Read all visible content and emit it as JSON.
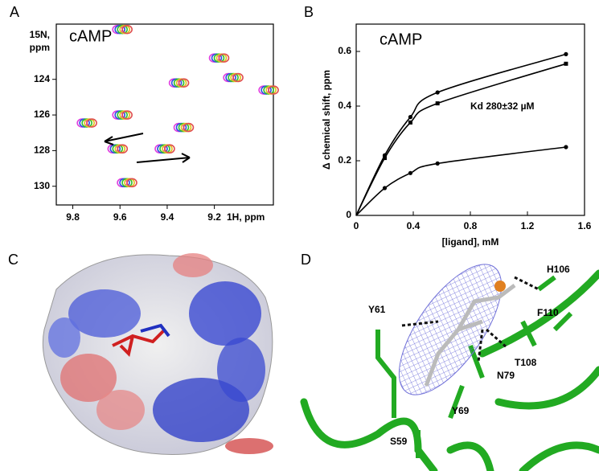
{
  "panel_labels": [
    "A",
    "B",
    "C",
    "D"
  ],
  "chart_data": [
    {
      "type": "nmr",
      "annotation": "cAMP",
      "xlabel": "1H, ppm",
      "ylabel": [
        "15N,",
        "ppm"
      ],
      "x": [
        9.59,
        9.18,
        9.35,
        9.12,
        9.74,
        9.59,
        9.33,
        9.61,
        9.41,
        9.57,
        8.97
      ],
      "y": [
        121.2,
        122.8,
        124.2,
        123.9,
        126.45,
        126.0,
        126.7,
        127.9,
        127.9,
        129.8,
        124.6
      ],
      "colors": [
        "#e040e0",
        "#3050e0",
        "#30c030",
        "#e0c020",
        "#e05050"
      ],
      "xlim": [
        9.87,
        8.95
      ],
      "xticks": [
        9.8,
        9.6,
        9.4,
        9.2
      ],
      "ylim": [
        131.05,
        120.9
      ],
      "yticks": [
        124,
        126,
        128,
        130
      ]
    },
    {
      "type": "line",
      "annotation": "cAMP",
      "kd_label": "Kd 280±32 µM",
      "xlabel": "[ligand], mM",
      "ylabel": "Δ chemical shift, ppm",
      "x": [
        0.2,
        0.38,
        0.57,
        1.47
      ],
      "series": [
        {
          "marker": "circle",
          "color": "#000000",
          "values": [
            0.22,
            0.36,
            0.45,
            0.59
          ]
        },
        {
          "marker": "square",
          "color": "#000000",
          "values": [
            0.21,
            0.34,
            0.41,
            0.555
          ]
        },
        {
          "marker": "circle",
          "color": "#000000",
          "values": [
            0.1,
            0.155,
            0.19,
            0.25
          ]
        }
      ],
      "xlim": [
        0,
        1.6
      ],
      "xticks": [
        0,
        0.4,
        0.8,
        1.2,
        1.6
      ],
      "ylim": [
        0,
        0.7
      ],
      "yticks": [
        0,
        0.2,
        0.4,
        0.6
      ]
    }
  ],
  "structure_labels": [
    "H106",
    "Y61",
    "F110",
    "T108",
    "N79",
    "Y69",
    "S59"
  ]
}
